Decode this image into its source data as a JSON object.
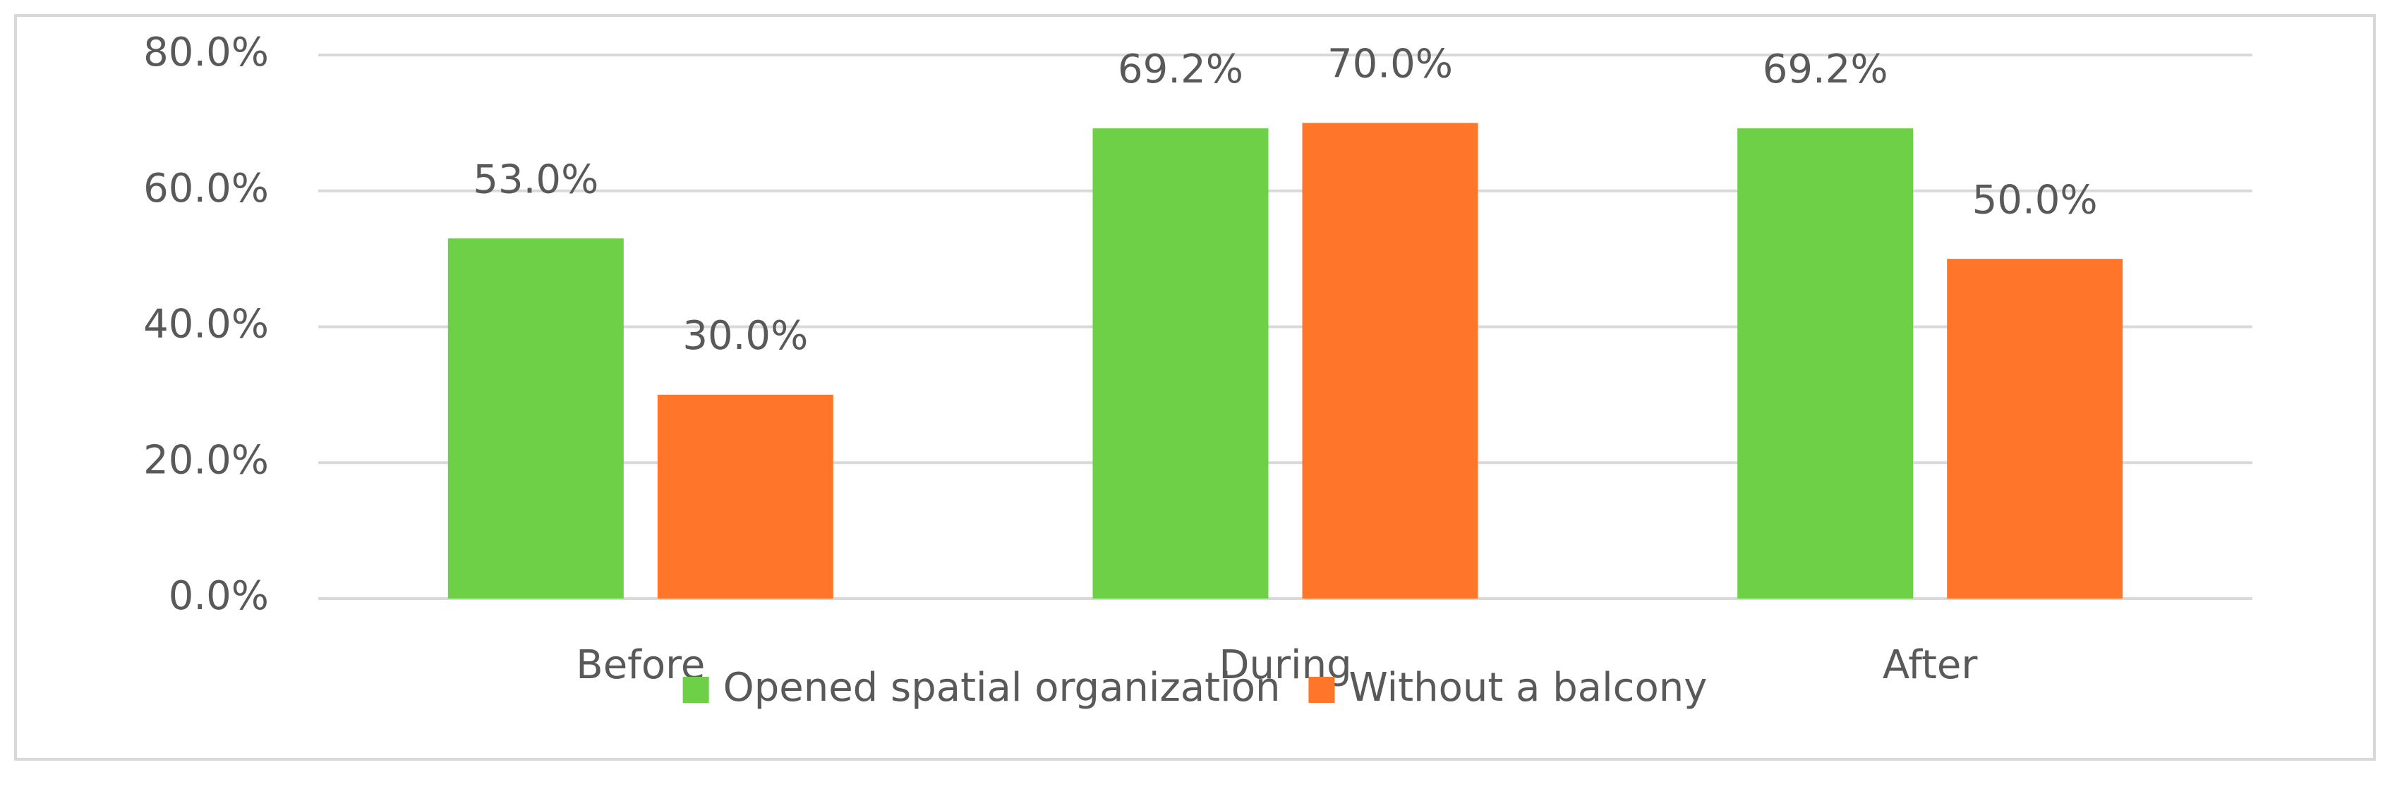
{
  "chart_data": {
    "type": "bar",
    "categories": [
      "Before",
      "During",
      "After"
    ],
    "series": [
      {
        "name": "Opened spatial organization",
        "color": "#6dd046",
        "values": [
          53.0,
          69.2,
          69.2
        ],
        "value_labels": [
          "53.0%",
          "69.2%",
          "69.2%"
        ]
      },
      {
        "name": "Without a balcony",
        "color": "#ff752a",
        "values": [
          30.0,
          70.0,
          50.0
        ],
        "value_labels": [
          "30.0%",
          "70.0%",
          "50.0%"
        ]
      }
    ],
    "ylim": [
      0,
      80
    ],
    "yticks": [
      {
        "value": 0,
        "label": "0.0%"
      },
      {
        "value": 20,
        "label": "20.0%"
      },
      {
        "value": 40,
        "label": "40.0%"
      },
      {
        "value": 60,
        "label": "60.0%"
      },
      {
        "value": 80,
        "label": "80.0%"
      }
    ],
    "grid": true,
    "legend": "bottom"
  }
}
